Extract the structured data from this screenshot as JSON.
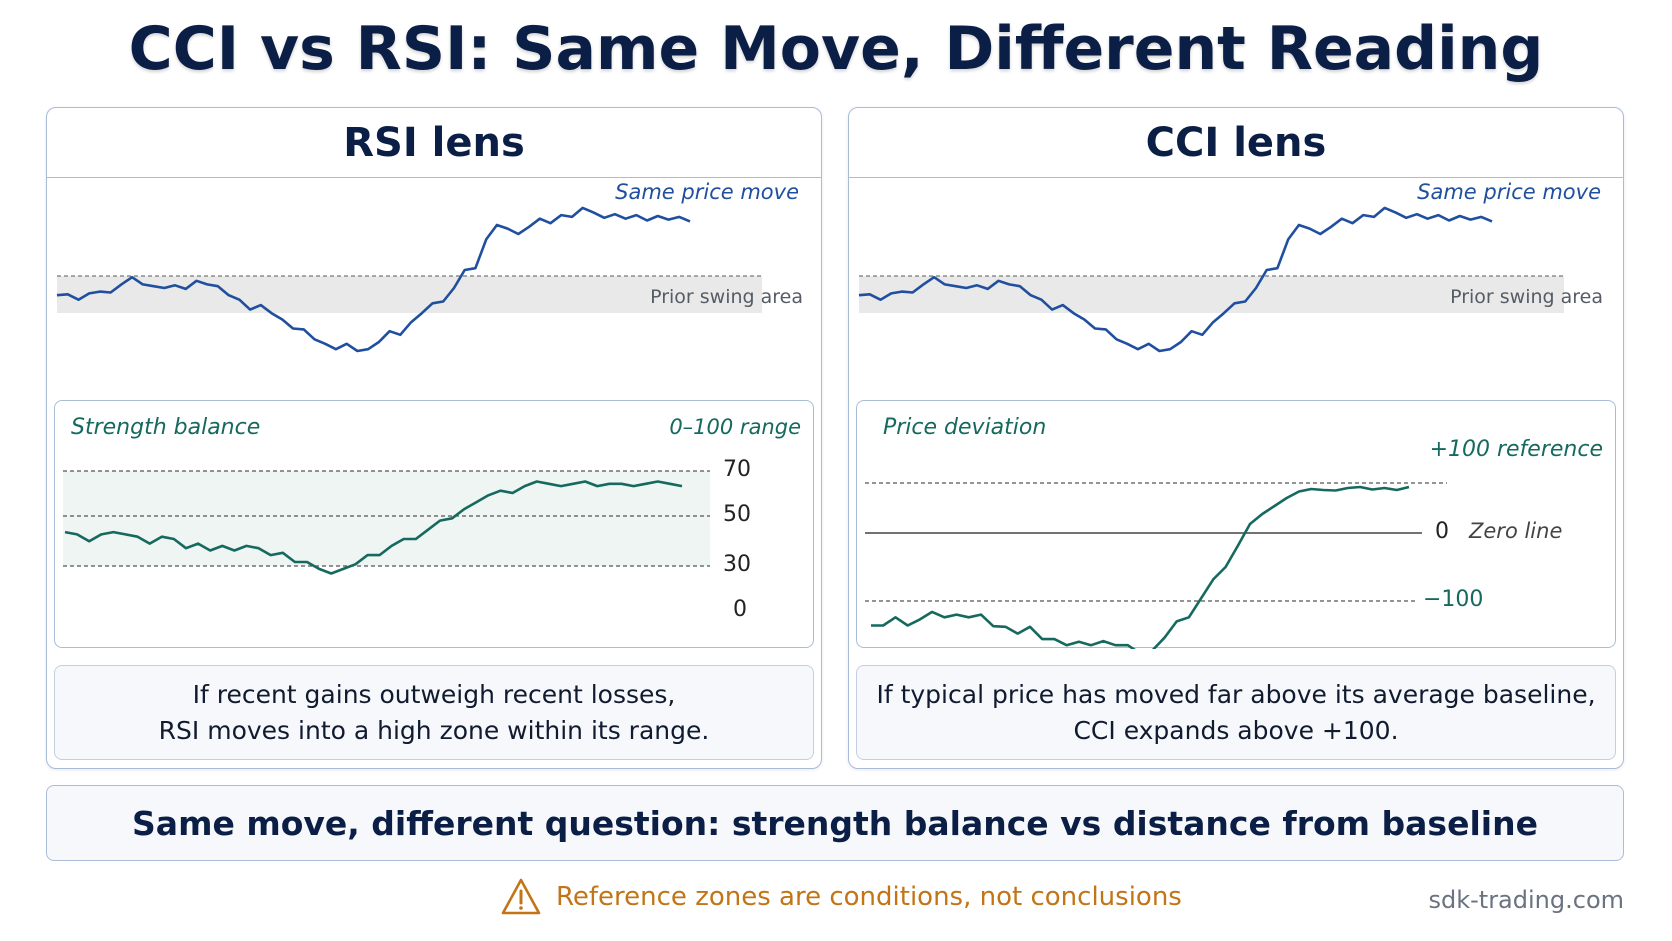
{
  "title": "CCI vs RSI: Same Move, Different Reading",
  "colors": {
    "price_line": "#1f4f9e",
    "indicator_line": "#15695e",
    "warning": "#c27516",
    "panel_border": "#a9bcd8",
    "band_grey": "#e6e6e6",
    "band_green": "#eaf3f1"
  },
  "rsi_panel": {
    "header": "RSI lens",
    "price_label": "Same price move",
    "swing_label": "Prior swing area",
    "sub_title": "Strength balance",
    "range_label": "0–100 range",
    "ticks": [
      "70",
      "50",
      "30",
      "0"
    ],
    "caption_line1": "If recent gains outweigh recent losses,",
    "caption_line2": "RSI moves into a high zone within its range."
  },
  "cci_panel": {
    "header": "CCI lens",
    "price_label": "Same price move",
    "swing_label": "Prior swing area",
    "sub_title": "Price deviation",
    "ref_plus_label": "+100 reference",
    "zero_tick": "0",
    "zero_label": "Zero line",
    "minus_label": "−100",
    "caption_line1": "If typical price has moved far above its average baseline,",
    "caption_line2": "CCI  expands above  +100."
  },
  "bottom_statement": "Same move, different question: strength balance vs distance from baseline",
  "warning": {
    "icon": "warning-triangle-icon",
    "text": "Reference zones are conditions, not conclusions"
  },
  "site": "sdk-trading.com",
  "chart_data": [
    {
      "type": "line",
      "title": "Same price move",
      "series": [
        {
          "values": [
            0.62,
            0.63,
            0.57,
            0.64,
            0.66,
            0.65,
            0.74,
            0.82,
            0.74,
            0.72,
            0.7,
            0.73,
            0.69,
            0.78,
            0.74,
            0.72,
            0.62,
            0.57,
            0.46,
            0.51,
            0.42,
            0.35,
            0.25,
            0.24,
            0.13,
            0.08,
            0.02,
            0.08,
            0.0,
            0.02,
            0.1,
            0.22,
            0.18,
            0.32,
            0.42,
            0.53,
            0.55,
            0.7,
            0.9,
            0.92,
            1.24,
            1.4,
            1.36,
            1.3,
            1.38,
            1.47,
            1.42,
            1.51,
            1.49,
            1.59,
            1.54,
            1.48,
            1.52,
            1.47,
            1.51,
            1.45,
            1.5,
            1.46,
            1.49,
            1.44
          ]
        }
      ]
    },
    {
      "type": "line",
      "title": "Strength balance",
      "ylim": [
        0,
        100
      ],
      "reference_lines": [
        70,
        50,
        30
      ],
      "series": [
        {
          "values": [
            43,
            42,
            39,
            42,
            43,
            42,
            41,
            38,
            41,
            40,
            36,
            38,
            35,
            37,
            35,
            37,
            36,
            33,
            34,
            30,
            30,
            27,
            25,
            27,
            29,
            33,
            33,
            37,
            40,
            40,
            44,
            48,
            49,
            53,
            56,
            59,
            61,
            60,
            63,
            65,
            64,
            63,
            64,
            65,
            63,
            64,
            64,
            63,
            64,
            65,
            64,
            63
          ]
        }
      ]
    },
    {
      "type": "line",
      "title": "Price deviation",
      "reference_lines": [
        100,
        0,
        -100
      ],
      "series": [
        {
          "values": [
            -136,
            -136,
            -124,
            -136,
            -127,
            -116,
            -124,
            -120,
            -124,
            -120,
            -137,
            -138,
            -148,
            -138,
            -156,
            -156,
            -165,
            -160,
            -165,
            -159,
            -165,
            -165,
            -177,
            -173,
            -154,
            -130,
            -124,
            -96,
            -68,
            -50,
            -19,
            18,
            38,
            54,
            70,
            83,
            88,
            86,
            85,
            90,
            92,
            87,
            90,
            86,
            92
          ]
        }
      ]
    }
  ]
}
